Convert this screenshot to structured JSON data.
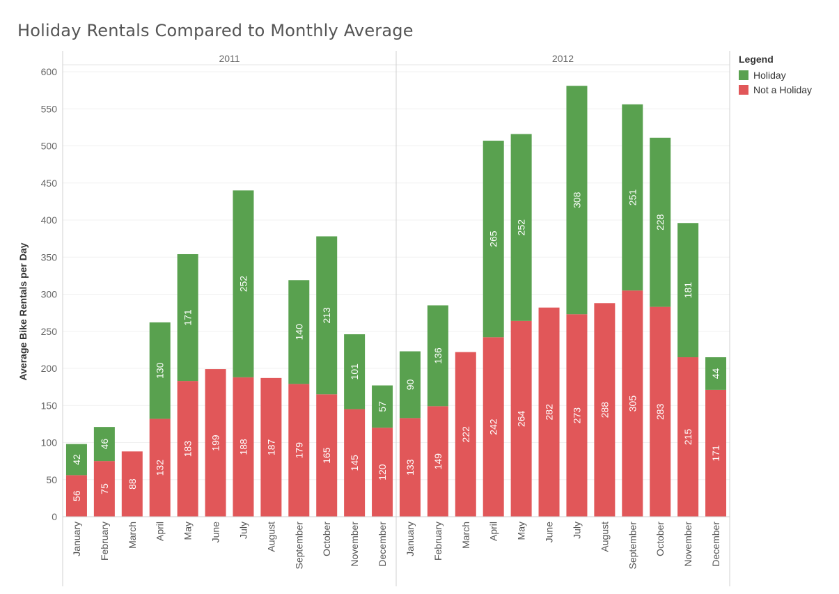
{
  "title": "Holiday Rentals Compared to Monthly Average",
  "legend": {
    "title": "Legend",
    "items": [
      {
        "label": "Holiday",
        "color": "#59a14f"
      },
      {
        "label": "Not a Holiday",
        "color": "#e15759"
      }
    ]
  },
  "chart_data": {
    "type": "bar",
    "stacked": true,
    "title": "Holiday Rentals Compared to Monthly Average",
    "ylabel": "Average Bike Rentals per Day",
    "xlabel": "",
    "ylim": [
      0,
      600
    ],
    "yticks": [
      0,
      50,
      100,
      150,
      200,
      250,
      300,
      350,
      400,
      450,
      500,
      550,
      600
    ],
    "grid": true,
    "legend_position": "right",
    "panels": [
      {
        "label": "2011",
        "categories": [
          "January",
          "February",
          "March",
          "April",
          "May",
          "June",
          "July",
          "August",
          "September",
          "October",
          "November",
          "December"
        ],
        "series": [
          {
            "name": "Not a Holiday",
            "color": "#e15759",
            "values": [
              56,
              75,
              88,
              132,
              183,
              199,
              188,
              187,
              179,
              165,
              145,
              120
            ]
          },
          {
            "name": "Holiday",
            "color": "#59a14f",
            "values": [
              42,
              46,
              null,
              130,
              171,
              null,
              252,
              null,
              140,
              213,
              101,
              57
            ]
          }
        ]
      },
      {
        "label": "2012",
        "categories": [
          "January",
          "February",
          "March",
          "April",
          "May",
          "June",
          "July",
          "August",
          "September",
          "October",
          "November",
          "December"
        ],
        "series": [
          {
            "name": "Not a Holiday",
            "color": "#e15759",
            "values": [
              133,
              149,
              222,
              242,
              264,
              282,
              273,
              288,
              305,
              283,
              215,
              171
            ]
          },
          {
            "name": "Holiday",
            "color": "#59a14f",
            "values": [
              90,
              136,
              null,
              265,
              252,
              null,
              308,
              null,
              251,
              228,
              181,
              44
            ]
          }
        ]
      }
    ]
  }
}
